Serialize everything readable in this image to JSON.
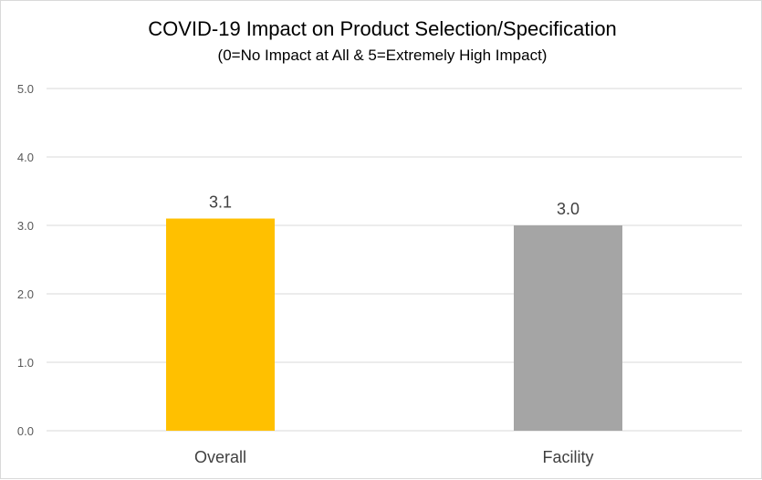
{
  "chart_data": {
    "type": "bar",
    "title": "COVID-19 Impact on Product Selection/Specification",
    "subtitle": "(0=No Impact at All & 5=Extremely High Impact)",
    "categories": [
      "Overall",
      "Facility"
    ],
    "values": [
      3.1,
      3.0
    ],
    "data_labels": [
      "3.1",
      "3.0"
    ],
    "bar_colors": [
      "#FFC000",
      "#A5A5A5"
    ],
    "ylim": [
      0,
      5
    ],
    "yticks": [
      0,
      1,
      2,
      3,
      4,
      5
    ],
    "ytick_labels": [
      "0.0",
      "1.0",
      "2.0",
      "3.0",
      "4.0",
      "5.0"
    ],
    "grid": true,
    "legend": "none"
  }
}
